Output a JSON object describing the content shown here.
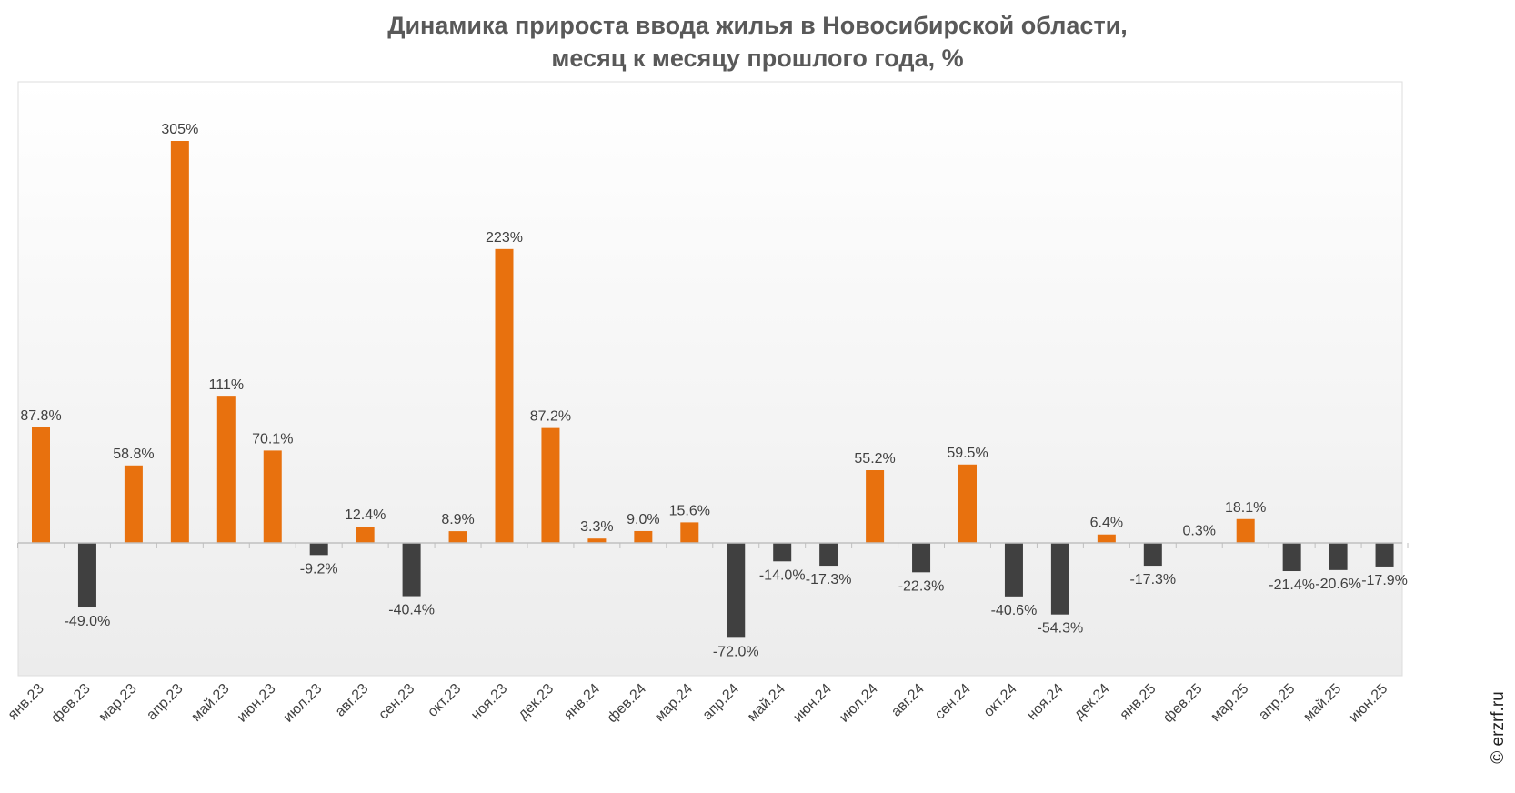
{
  "watermark": "© erzrf.ru",
  "colors": {
    "positive": "#E8710E",
    "negative": "#404040",
    "label": "#404040",
    "axis": "#bfbfbf"
  },
  "chart_data": {
    "type": "bar",
    "title_line1": "Динамика прироста ввода жилья в Новосибирской области,",
    "title_line2": "месяц к месяцу прошлого года, %",
    "xlabel": "",
    "ylabel": "",
    "grid": false,
    "legend": "none",
    "categories": [
      "янв.23",
      "фев.23",
      "мар.23",
      "апр.23",
      "май.23",
      "июн.23",
      "июл.23",
      "авг.23",
      "сен.23",
      "окт.23",
      "ноя.23",
      "дек.23",
      "янв.24",
      "фев.24",
      "мар.24",
      "апр.24",
      "май.24",
      "июн.24",
      "июл.24",
      "авг.24",
      "сен.24",
      "окт.24",
      "ноя.24",
      "дек.24",
      "янв.25",
      "фев.25",
      "мар.25",
      "апр.25",
      "май.25",
      "июн.25"
    ],
    "values": [
      87.8,
      -49.0,
      58.8,
      305,
      111,
      70.1,
      -9.2,
      12.4,
      -40.4,
      8.9,
      223,
      87.2,
      3.3,
      9.0,
      15.6,
      -72.0,
      -14.0,
      -17.3,
      55.2,
      -22.3,
      59.5,
      -40.6,
      -54.3,
      6.4,
      -17.3,
      0.3,
      18.1,
      -21.4,
      -20.6,
      -17.9
    ],
    "labels": [
      "87.8%",
      "-49.0%",
      "58.8%",
      "305%",
      "111%",
      "70.1%",
      "-9.2%",
      "12.4%",
      "-40.4%",
      "8.9%",
      "223%",
      "87.2%",
      "3.3%",
      "9.0%",
      "15.6%",
      "-72.0%",
      "-14.0%",
      "-17.3%",
      "55.2%",
      "-22.3%",
      "59.5%",
      "-40.6%",
      "-54.3%",
      "6.4%",
      "-17.3%",
      "0.3%",
      "18.1%",
      "-21.4%",
      "-20.6%",
      "-17.9%"
    ],
    "ylim": [
      -100,
      335
    ]
  }
}
